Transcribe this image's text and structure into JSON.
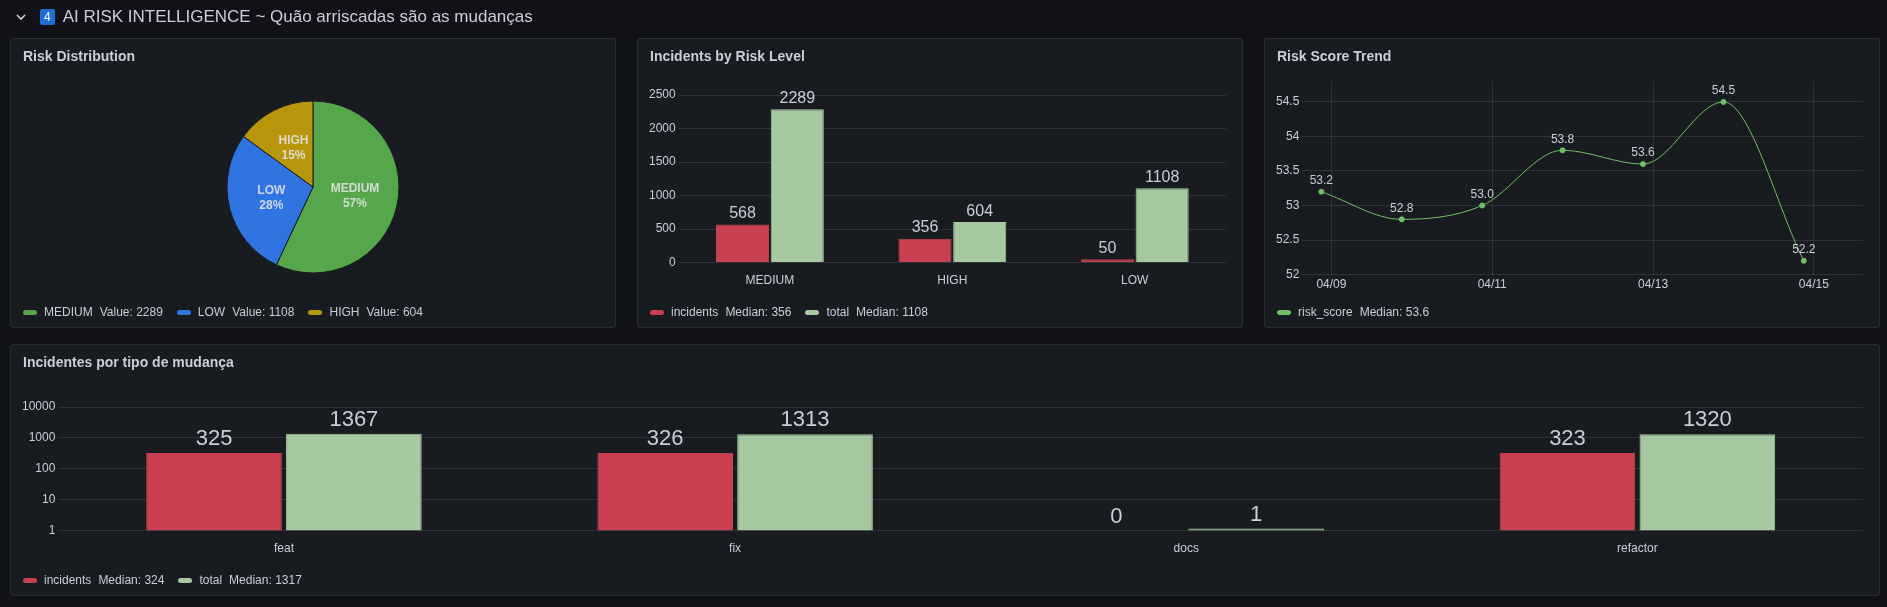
{
  "chart_data": [
    {
      "type": "other",
      "title": "AI RISK INTELLIGENCE ~ Quão arriscadas são as mudanças",
      "annotations": [
        "4"
      ]
    },
    {
      "type": "pie",
      "title": "Risk Distribution",
      "categories": [
        "MEDIUM",
        "LOW",
        "HIGH"
      ],
      "values": [
        57,
        28,
        15
      ],
      "colors": [
        "#56a64b",
        "#2f74e0",
        "#b8960c"
      ],
      "value_labels": [
        "57%",
        "28%",
        "15%"
      ],
      "legend": "bottom",
      "annotations": [
        "Value: 2289",
        "Value: 1108",
        "Value: 604"
      ]
    },
    {
      "type": "bar",
      "title": "Incidents by Risk Level",
      "categories": [
        "MEDIUM",
        "HIGH",
        "LOW"
      ],
      "series": [
        {
          "name": "incidents",
          "color": "#c94150",
          "values": [
            568,
            356,
            50
          ]
        },
        {
          "name": "total",
          "color": "#a7c9a2",
          "values": [
            2289,
            604,
            1108
          ]
        }
      ],
      "ylim": [
        0,
        2500
      ],
      "yticks": [
        0,
        500,
        1000,
        1500,
        2000,
        2500
      ],
      "grid": "y",
      "data_labels": true,
      "legend": "bottom",
      "annotations": [
        "Median: 356",
        "Median: 1108"
      ]
    },
    {
      "type": "line",
      "title": "Risk Score Trend",
      "x": [
        "--04-08T21:00",
        "--04-09T21:00",
        "--04-10T21:00",
        "--04-11T21:00",
        "--04-12T21:00",
        "--04-13T21:00",
        "--04-14T21:00"
      ],
      "series": [
        {
          "name": "risk_score",
          "color": "#73bf69",
          "values": [
            53.2,
            52.8,
            53.0,
            53.8,
            53.6,
            54.5,
            52.2
          ],
          "value_labels": [
            "53.2",
            "52.8",
            "53.0",
            "53.8",
            "53.6",
            "54.5",
            "52.2"
          ]
        }
      ],
      "xlim": [
        "--04-08T15:20",
        "--04-15T14:40"
      ],
      "xticks": [
        {
          "value": "--04-09",
          "label": "04/09"
        },
        {
          "value": "--04-11",
          "label": "04/11"
        },
        {
          "value": "--04-13",
          "label": "04/13"
        },
        {
          "value": "--04-15",
          "label": "04/15"
        }
      ],
      "ylim": [
        52,
        54.8
      ],
      "yticks": [
        52,
        52.5,
        53,
        53.5,
        54,
        54.5
      ],
      "grid": true,
      "marker": "circle",
      "legend": "bottom",
      "annotations": [
        "Median: 53.6"
      ]
    },
    {
      "type": "bar",
      "title": "Incidentes por tipo de mudança",
      "categories": [
        "feat",
        "fix",
        "docs",
        "refactor"
      ],
      "series": [
        {
          "name": "incidents",
          "color": "#c94150",
          "values": [
            325,
            326,
            null,
            323
          ]
        },
        {
          "name": "total",
          "color": "#a7c9a2",
          "values": [
            1367,
            1313,
            1,
            1320
          ]
        }
      ],
      "log": "y",
      "ylim": [
        1,
        10000
      ],
      "yticks": [
        1,
        10,
        100,
        1000,
        10000
      ],
      "grid": "y",
      "data_labels": true,
      "legend": "bottom",
      "annotations": [
        "Median: 324",
        "Median: 1317",
        {
          "text": "0",
          "x": "docs",
          "y": 1
        }
      ]
    }
  ]
}
